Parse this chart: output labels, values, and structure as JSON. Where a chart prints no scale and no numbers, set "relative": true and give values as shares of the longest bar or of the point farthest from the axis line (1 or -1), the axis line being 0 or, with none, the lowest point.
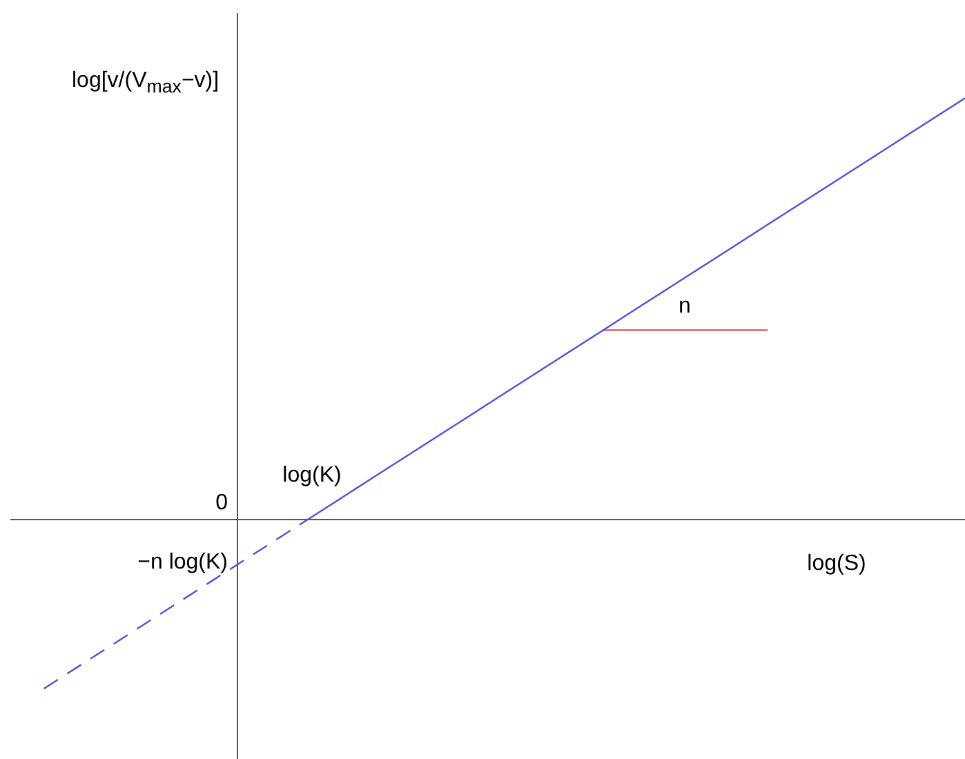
{
  "chart_data": {
    "type": "line",
    "xlabel": "log(S)",
    "ylabel": "log[v/(V$_{max}$−v)]",
    "relative": true,
    "legend": false,
    "grid": false,
    "marker": "none",
    "categories": [
      null,
      null,
      null,
      null,
      null,
      null,
      null,
      null,
      null,
      null,
      null,
      null,
      null,
      null,
      null,
      null,
      null,
      null,
      null,
      null,
      null,
      null,
      null,
      null,
      null,
      null,
      null,
      null,
      null,
      null
    ],
    "series": [
      {
        "color": "#5050e0",
        "line_style": "solid",
        "values": [
          null,
          null,
          null,
          null,
          null,
          null,
          null,
          null,
          null,
          0,
          0.05,
          0.1,
          0.15,
          0.2,
          0.25,
          0.3,
          0.35,
          0.4,
          0.45,
          0.5,
          0.55,
          0.6,
          0.65,
          0.7,
          0.75,
          0.8,
          0.85,
          0.9,
          0.95,
          1
        ]
      },
      {
        "color": "#5050e0",
        "line_style": "dashed",
        "values": [
          null,
          -0.4,
          -0.35,
          -0.3,
          -0.25,
          -0.2,
          -0.15,
          -0.1,
          -0.05,
          0,
          null,
          null,
          null,
          null,
          null,
          null,
          null,
          null,
          null,
          null,
          null,
          null,
          null,
          null,
          null,
          null,
          null,
          null,
          null,
          null
        ]
      },
      {
        "color": "#e05050",
        "line_style": "solid",
        "values": [
          null,
          null,
          null,
          null,
          null,
          null,
          null,
          null,
          null,
          null,
          null,
          null,
          null,
          null,
          null,
          null,
          null,
          null,
          0.45,
          0.45,
          0.45,
          0.45,
          0.45,
          0.45,
          null,
          null,
          null,
          null,
          null,
          null
        ]
      }
    ],
    "annotations": [
      "0",
      {
        "text": "log(K)",
        "y": 0
      },
      "−n log(K)",
      {
        "text": "n",
        "y": 0.45
      }
    ]
  }
}
